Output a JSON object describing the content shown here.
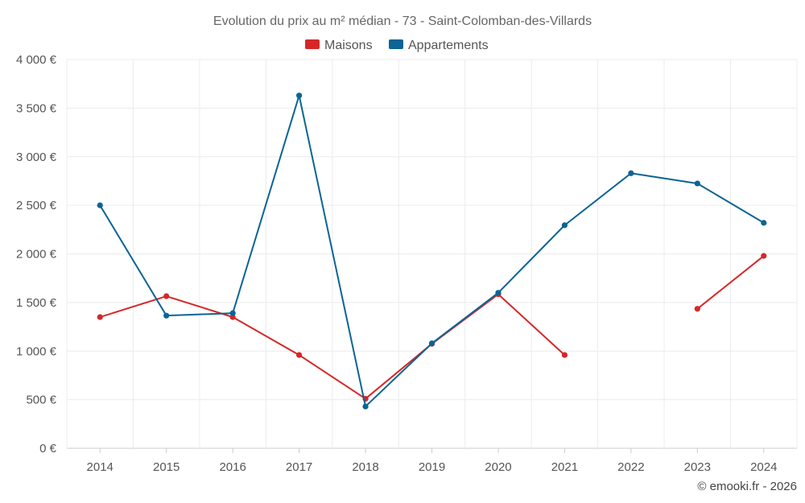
{
  "chart_data": {
    "type": "line",
    "title": "Evolution du prix au m² médian - 73 - Saint-Colomban-des-Villards",
    "categories": [
      "2014",
      "2015",
      "2016",
      "2017",
      "2018",
      "2019",
      "2020",
      "2021",
      "2022",
      "2023",
      "2024"
    ],
    "ylim": [
      0,
      4000
    ],
    "yticks": [
      0,
      500,
      1000,
      1500,
      2000,
      2500,
      3000,
      3500,
      4000
    ],
    "ytick_labels": [
      "0 €",
      "500 €",
      "1 000 €",
      "1 500 €",
      "2 000 €",
      "2 500 €",
      "3 000 €",
      "3 500 €",
      "4 000 €"
    ],
    "grid": true,
    "legend_position": "top-center",
    "series": [
      {
        "name": "Maisons",
        "color": "#d62728",
        "values": [
          1350,
          1565,
          1350,
          960,
          510,
          1075,
          1585,
          960,
          null,
          1435,
          1980
        ]
      },
      {
        "name": "Appartements",
        "color": "#0b6494",
        "values": [
          2500,
          1365,
          1390,
          3630,
          430,
          1080,
          1600,
          2295,
          2830,
          2725,
          2320
        ]
      }
    ],
    "credit": "© emooki.fr - 2026"
  }
}
